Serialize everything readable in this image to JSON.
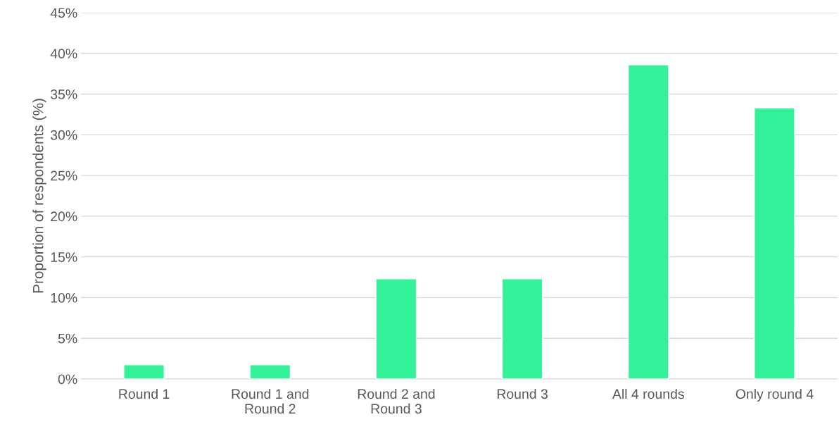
{
  "chart_data": {
    "type": "bar",
    "ylabel": "Proportion of respondents (%)",
    "categories": [
      "Round 1",
      "Round 1 and\nRound 2",
      "Round 2 and\nRound 3",
      "Round 3",
      "All 4 rounds",
      "Only round 4"
    ],
    "values": [
      1.75,
      1.75,
      12.3,
      12.3,
      38.6,
      33.3
    ],
    "color": "#33f29a",
    "ylim": [
      0,
      45
    ],
    "yticks": [
      {
        "value": 0,
        "label": "0%"
      },
      {
        "value": 5,
        "label": "5%"
      },
      {
        "value": 10,
        "label": "10%"
      },
      {
        "value": 15,
        "label": "15%"
      },
      {
        "value": 20,
        "label": "20%"
      },
      {
        "value": 25,
        "label": "25%"
      },
      {
        "value": 30,
        "label": "30%"
      },
      {
        "value": 35,
        "label": "35%"
      },
      {
        "value": 40,
        "label": "40%"
      },
      {
        "value": 45,
        "label": "45%"
      }
    ],
    "grid": "y"
  }
}
